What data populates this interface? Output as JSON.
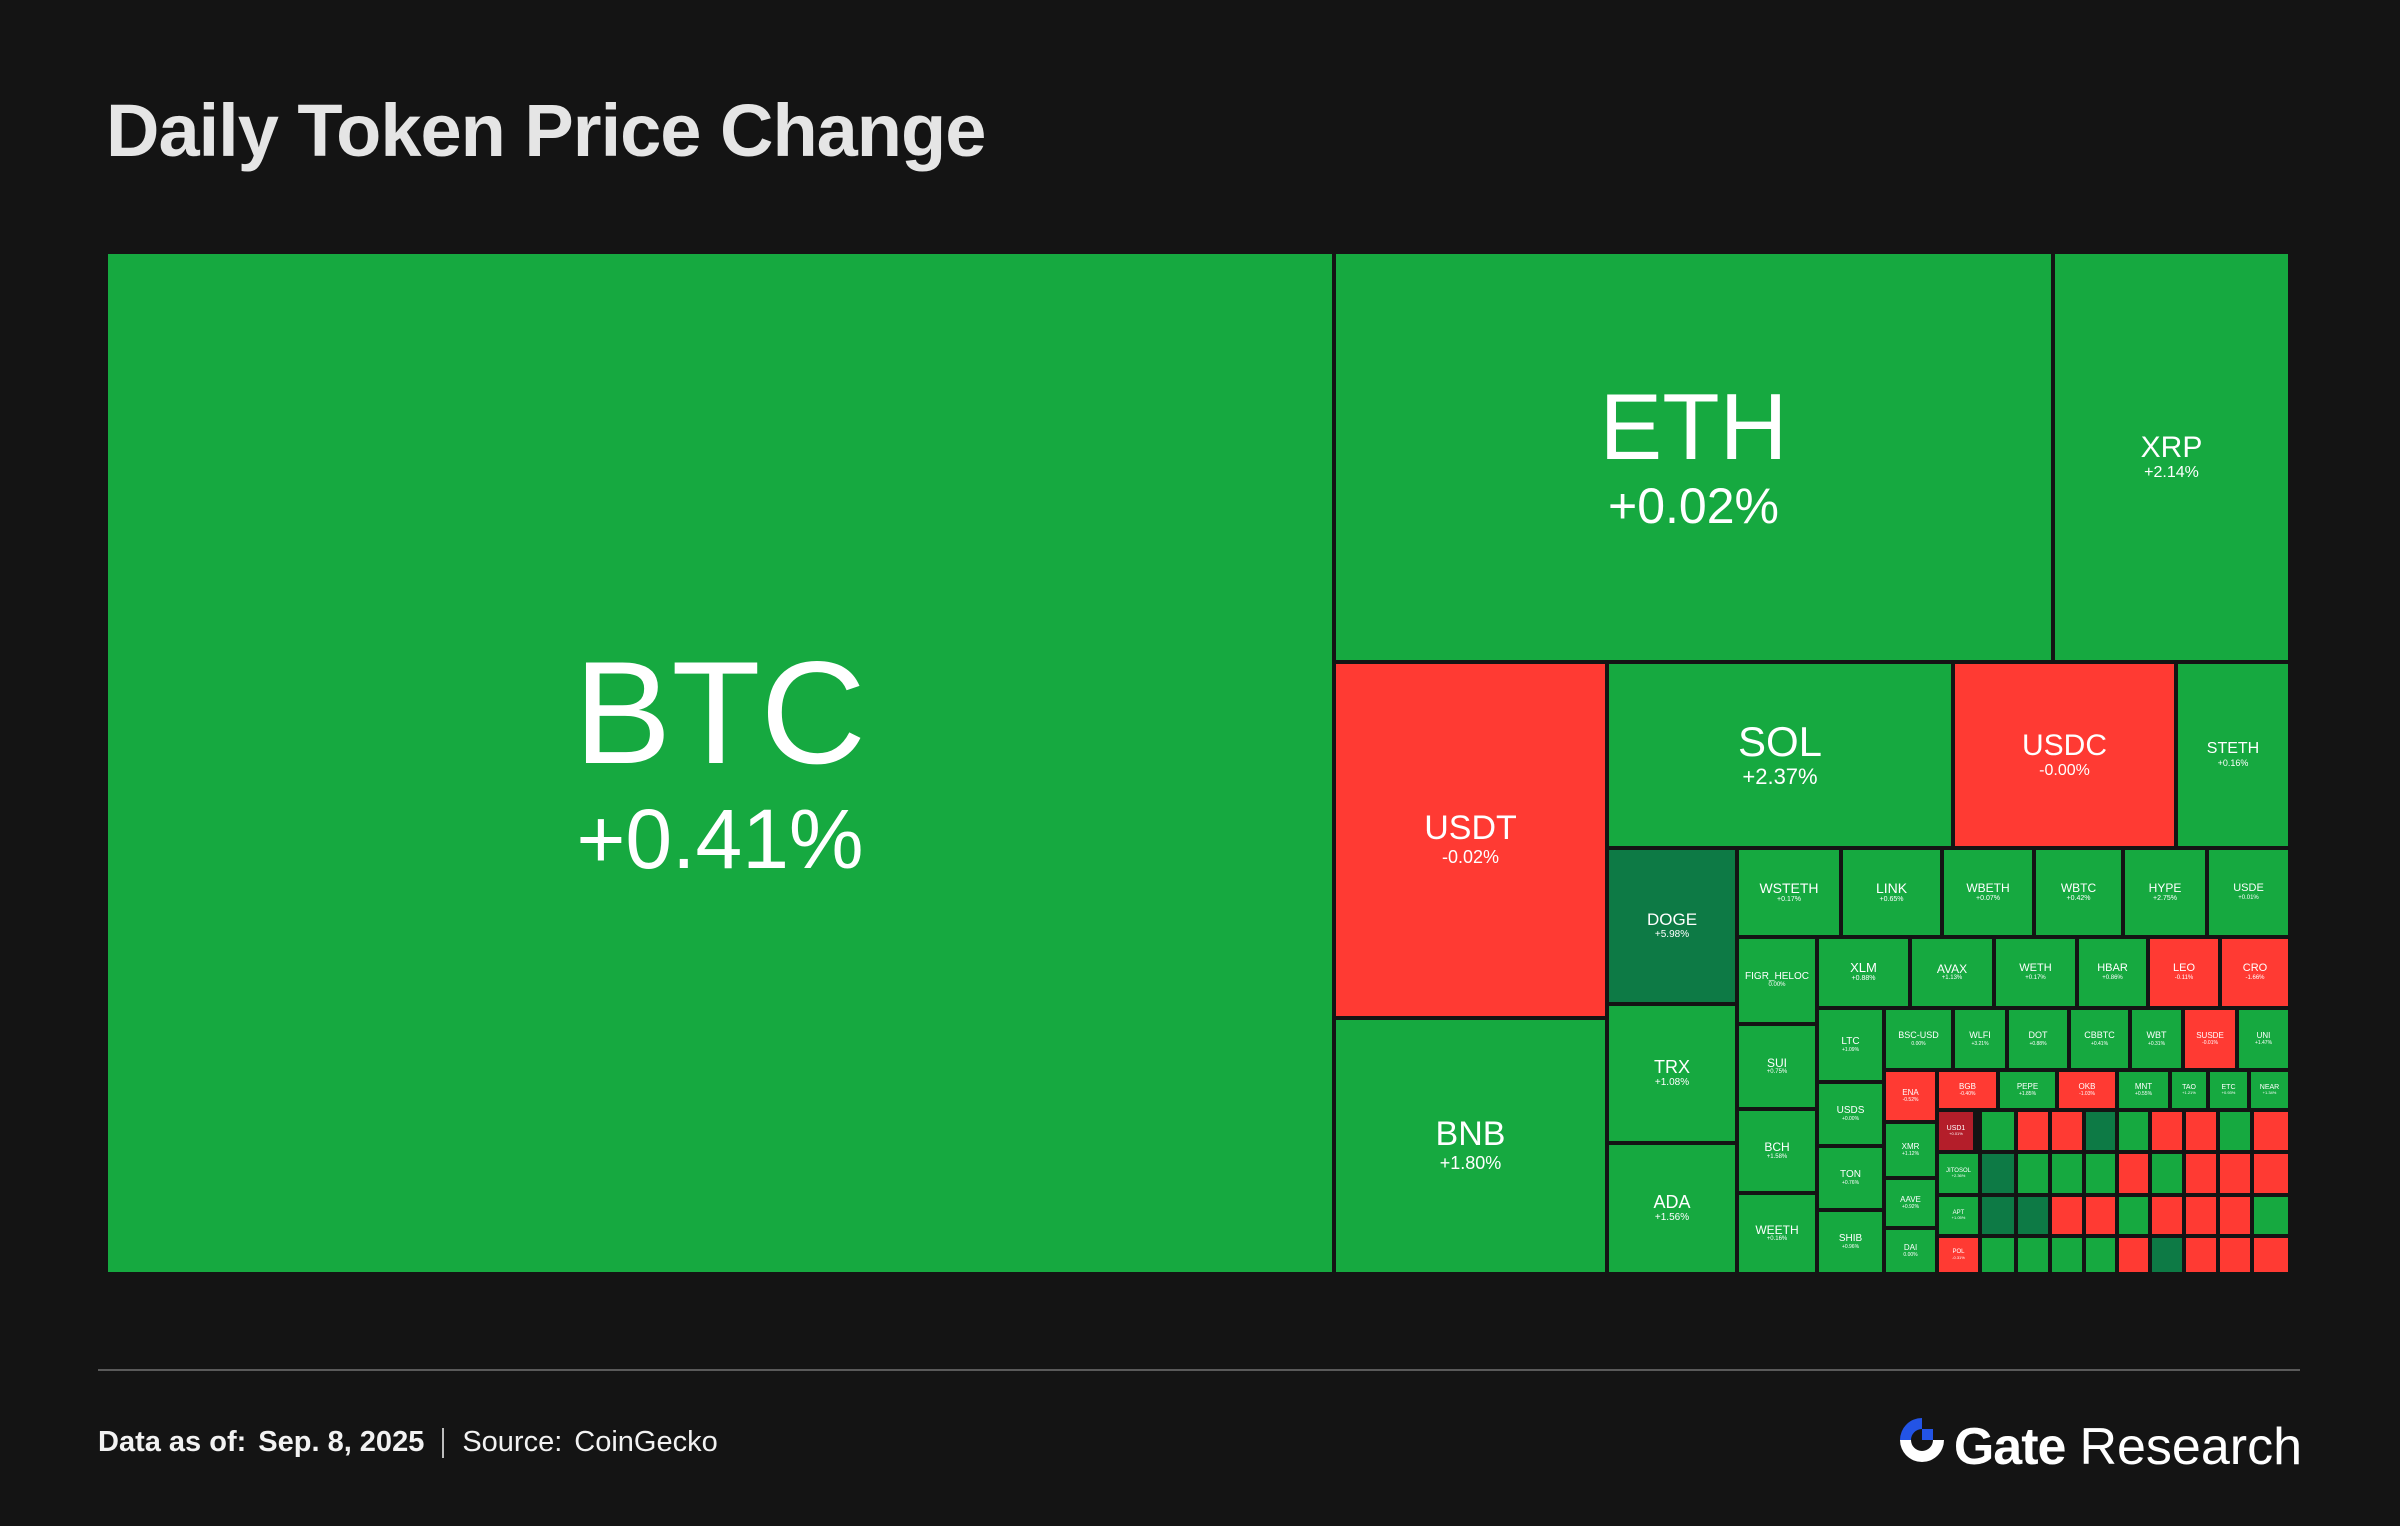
{
  "title": "Daily Token Price Change",
  "colors": {
    "up": "#16a940",
    "down": "#ff3a33",
    "strong_up": "#0d7a45",
    "strong_down": "#b41e2a",
    "background": "#141414",
    "brand_blue": "#2354e6"
  },
  "footer": {
    "date_label": "Data as of:",
    "date_value": "Sep. 8, 2025",
    "source_label": "Source:",
    "source_value": "CoinGecko",
    "brand_name": "Gate",
    "brand_sub": "Research",
    "brand_icon": "gate-logo-icon"
  },
  "chart_data": {
    "type": "treemap",
    "title": "Daily Token Price Change",
    "tiles": [
      {
        "symbol": "BTC",
        "change": "+0.41%",
        "value": 0.41
      },
      {
        "symbol": "ETH",
        "change": "+0.02%",
        "value": 0.02
      },
      {
        "symbol": "XRP",
        "change": "+2.14%",
        "value": 2.14
      },
      {
        "symbol": "USDT",
        "change": "-0.02%",
        "value": -0.02
      },
      {
        "symbol": "BNB",
        "change": "+1.80%",
        "value": 1.8
      },
      {
        "symbol": "SOL",
        "change": "+2.37%",
        "value": 2.37
      },
      {
        "symbol": "USDC",
        "change": "-0.00%",
        "value": -0.0
      },
      {
        "symbol": "STETH",
        "change": "+0.16%",
        "value": 0.16
      },
      {
        "symbol": "DOGE",
        "change": "+5.98%",
        "value": 5.98
      },
      {
        "symbol": "TRX",
        "change": "+1.08%",
        "value": 1.08
      },
      {
        "symbol": "ADA",
        "change": "+1.56%",
        "value": 1.56
      },
      {
        "symbol": "WSTETH",
        "change": "+0.17%",
        "value": 0.17
      },
      {
        "symbol": "LINK",
        "change": "+0.65%",
        "value": 0.65
      },
      {
        "symbol": "WBETH",
        "change": "+0.07%",
        "value": 0.07
      },
      {
        "symbol": "WBTC",
        "change": "+0.42%",
        "value": 0.42
      },
      {
        "symbol": "HYPE",
        "change": "+2.75%",
        "value": 2.75
      },
      {
        "symbol": "USDE",
        "change": "+0.01%",
        "value": 0.01
      },
      {
        "symbol": "FIGR_HELOC",
        "change": "0.00%",
        "value": 0.0
      },
      {
        "symbol": "XLM",
        "change": "+0.88%",
        "value": 0.88
      },
      {
        "symbol": "AVAX",
        "change": "+1.13%",
        "value": 1.13
      },
      {
        "symbol": "WETH",
        "change": "+0.17%",
        "value": 0.17
      },
      {
        "symbol": "HBAR",
        "change": "+0.86%",
        "value": 0.86
      },
      {
        "symbol": "LEO",
        "change": "-0.11%",
        "value": -0.11
      },
      {
        "symbol": "CRO",
        "change": "-1.66%",
        "value": -1.66
      },
      {
        "symbol": "SUI",
        "change": "+0.75%",
        "value": 0.75
      },
      {
        "symbol": "BCH",
        "change": "+1.58%",
        "value": 1.58
      },
      {
        "symbol": "WEETH",
        "change": "+0.16%",
        "value": 0.16
      },
      {
        "symbol": "LTC",
        "change": "+1.09%",
        "value": 1.09
      },
      {
        "symbol": "USDS",
        "change": "+0.00%",
        "value": 0.0
      },
      {
        "symbol": "TON",
        "change": "+0.76%",
        "value": 0.76
      },
      {
        "symbol": "SHIB",
        "change": "+0.96%",
        "value": 0.96
      },
      {
        "symbol": "BSC-USD",
        "change": "0.00%",
        "value": 0.0
      },
      {
        "symbol": "WLFI",
        "change": "+3.21%",
        "value": 3.21
      },
      {
        "symbol": "DOT",
        "change": "+0.88%",
        "value": 0.88
      },
      {
        "symbol": "CBBTC",
        "change": "+0.41%",
        "value": 0.41
      },
      {
        "symbol": "WBT",
        "change": "+0.31%",
        "value": 0.31
      },
      {
        "symbol": "SUSDE",
        "change": "-0.01%",
        "value": -0.01
      },
      {
        "symbol": "UNI",
        "change": "+1.47%",
        "value": 1.47
      },
      {
        "symbol": "ENA",
        "change": "-0.52%",
        "value": -0.52
      },
      {
        "symbol": "XMR",
        "change": "+1.12%",
        "value": 1.12
      },
      {
        "symbol": "AAVE",
        "change": "+0.92%",
        "value": 0.92
      },
      {
        "symbol": "BGB",
        "change": "-0.40%",
        "value": -0.4
      },
      {
        "symbol": "PEPE",
        "change": "+1.85%",
        "value": 1.85
      },
      {
        "symbol": "OKB",
        "change": "-1.03%",
        "value": -1.03
      },
      {
        "symbol": "MNT",
        "change": "+0.55%",
        "value": 0.55
      },
      {
        "symbol": "TAO",
        "change": "+1.21%",
        "value": 1.21
      },
      {
        "symbol": "ETC",
        "change": "+0.93%",
        "value": 0.93
      },
      {
        "symbol": "NEAR",
        "change": "+1.34%",
        "value": 1.34
      },
      {
        "symbol": "DAI",
        "change": "0.00%",
        "value": 0.0
      },
      {
        "symbol": "USD1",
        "change": "+0.01%",
        "value": 0.01
      },
      {
        "symbol": "JITOSOL",
        "change": "+2.36%",
        "value": 2.36
      },
      {
        "symbol": "APT",
        "change": "+1.05%",
        "value": 1.05
      },
      {
        "symbol": "POL",
        "change": "-0.31%",
        "value": -0.31
      }
    ]
  }
}
